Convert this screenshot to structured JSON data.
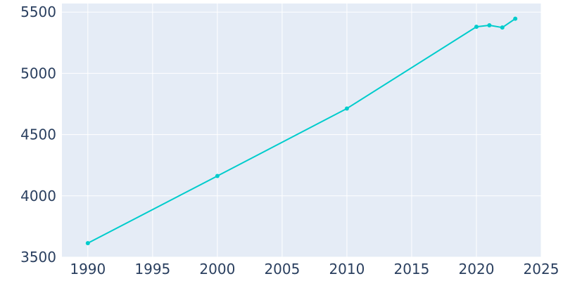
{
  "chart_data": {
    "type": "line",
    "title": "",
    "xlabel": "",
    "ylabel": "",
    "xlim": [
      1988,
      2025
    ],
    "ylim": [
      3500,
      5570
    ],
    "x_ticks": [
      1990,
      1995,
      2000,
      2005,
      2010,
      2015,
      2020,
      2025
    ],
    "y_ticks": [
      3500,
      4000,
      4500,
      5000,
      5500
    ],
    "grid": true,
    "legend": "none",
    "colors": {
      "plot_background": "#e5ecf6",
      "grid": "#ffffff",
      "line": "#00cccc",
      "tick_text": "#2a3f5f"
    },
    "series": [
      {
        "x": [
          1990,
          2000,
          2010,
          2020,
          2021,
          2022,
          2023
        ],
        "y": [
          3614,
          4162,
          4713,
          5380,
          5392,
          5374,
          5446
        ]
      }
    ]
  }
}
